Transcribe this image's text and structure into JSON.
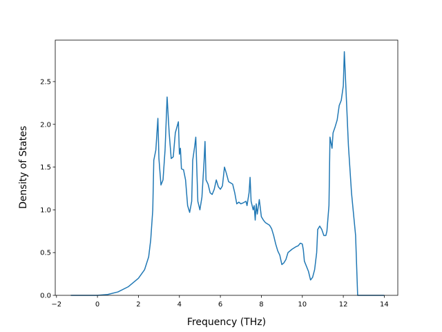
{
  "chart_data": {
    "type": "line",
    "x_label": "Frequency (THz)",
    "y_label": "Density of States",
    "xlim": [
      -2.06,
      14.66
    ],
    "ylim": [
      0,
      2.985
    ],
    "xticks": [
      {
        "value": -2,
        "label": "−2"
      },
      0,
      2,
      4,
      6,
      8,
      10,
      12,
      14
    ],
    "yticks": [
      {
        "value": 0,
        "label": "0.0"
      },
      0.5,
      {
        "value": 1,
        "label": "1.0"
      },
      1.5,
      {
        "value": 2,
        "label": "2.0"
      },
      2.5
    ],
    "series": [
      {
        "color": "#1f77b4",
        "x": [
          -1.3,
          0,
          0.5,
          1,
          1.5,
          2,
          2.3,
          2.5,
          2.6,
          2.7,
          2.75,
          2.85,
          2.95,
          3.0,
          3.1,
          3.2,
          3.3,
          3.4,
          3.5,
          3.6,
          3.7,
          3.8,
          3.95,
          4.0,
          4.05,
          4.1,
          4.2,
          4.3,
          4.4,
          4.5,
          4.6,
          4.65,
          4.75,
          4.8,
          4.9,
          5.0,
          5.1,
          5.2,
          5.25,
          5.3,
          5.4,
          5.5,
          5.6,
          5.7,
          5.8,
          5.9,
          6.0,
          6.1,
          6.2,
          6.3,
          6.4,
          6.6,
          6.7,
          6.8,
          6.9,
          7.0,
          7.1,
          7.25,
          7.3,
          7.4,
          7.45,
          7.5,
          7.6,
          7.65,
          7.7,
          7.75,
          7.8,
          7.9,
          8.0,
          8.1,
          8.2,
          8.4,
          8.5,
          8.6,
          8.7,
          8.8,
          8.9,
          9.0,
          9.1,
          9.2,
          9.3,
          9.5,
          9.7,
          9.8,
          9.9,
          10.0,
          10.05,
          10.1,
          10.3,
          10.4,
          10.5,
          10.6,
          10.7,
          10.75,
          10.85,
          10.95,
          11.05,
          11.15,
          11.2,
          11.3,
          11.35,
          11.45,
          11.5,
          11.6,
          11.7,
          11.8,
          11.9,
          12.0,
          12.05,
          12.15,
          12.25,
          12.4,
          12.5,
          12.6,
          12.7,
          14.0
        ],
        "values": [
          0,
          0,
          0.01,
          0.04,
          0.1,
          0.2,
          0.3,
          0.45,
          0.65,
          1.0,
          1.58,
          1.7,
          2.07,
          1.6,
          1.29,
          1.35,
          1.7,
          2.32,
          1.9,
          1.6,
          1.62,
          1.9,
          2.03,
          1.65,
          1.72,
          1.48,
          1.47,
          1.35,
          1.05,
          0.97,
          1.1,
          1.58,
          1.75,
          1.85,
          1.1,
          1.0,
          1.15,
          1.55,
          1.8,
          1.35,
          1.3,
          1.2,
          1.18,
          1.24,
          1.35,
          1.27,
          1.24,
          1.28,
          1.5,
          1.42,
          1.33,
          1.3,
          1.2,
          1.07,
          1.09,
          1.07,
          1.08,
          1.1,
          1.05,
          1.2,
          1.38,
          1.1,
          1.0,
          1.05,
          0.88,
          1.07,
          0.95,
          1.12,
          0.92,
          0.88,
          0.85,
          0.82,
          0.78,
          0.7,
          0.6,
          0.52,
          0.47,
          0.36,
          0.38,
          0.42,
          0.5,
          0.54,
          0.57,
          0.58,
          0.61,
          0.6,
          0.53,
          0.4,
          0.28,
          0.18,
          0.21,
          0.3,
          0.5,
          0.77,
          0.81,
          0.77,
          0.7,
          0.7,
          0.75,
          1.05,
          1.85,
          1.72,
          1.9,
          1.97,
          2.05,
          2.22,
          2.28,
          2.45,
          2.85,
          2.3,
          1.75,
          1.2,
          0.95,
          0.7,
          0,
          0
        ]
      }
    ]
  }
}
